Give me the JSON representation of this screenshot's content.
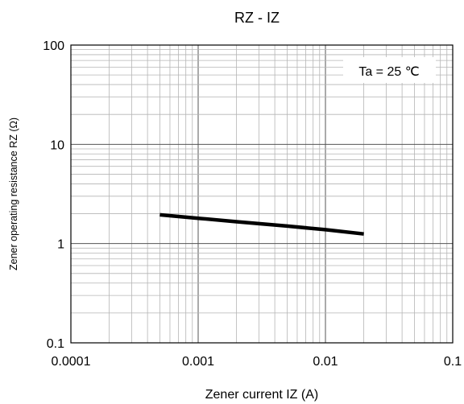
{
  "chart_data": {
    "type": "line",
    "title": "RZ - IZ",
    "xlabel": "Zener current IZ (A)",
    "ylabel": "Zener operating resistance RZ (Ω)",
    "annotation": "Ta = 25 ℃",
    "x_scale": "log",
    "y_scale": "log",
    "xlim": [
      0.0001,
      0.1
    ],
    "ylim": [
      0.1,
      100
    ],
    "x_ticks": [
      "0.0001",
      "0.001",
      "0.01",
      "0.1"
    ],
    "y_ticks": [
      "0.1",
      "1",
      "10",
      "100"
    ],
    "grid": true,
    "series": [
      {
        "x": [
          0.0005,
          0.001,
          0.002,
          0.005,
          0.01,
          0.02
        ],
        "y": [
          1.95,
          1.8,
          1.66,
          1.5,
          1.38,
          1.25
        ],
        "color": "#000000"
      }
    ]
  }
}
